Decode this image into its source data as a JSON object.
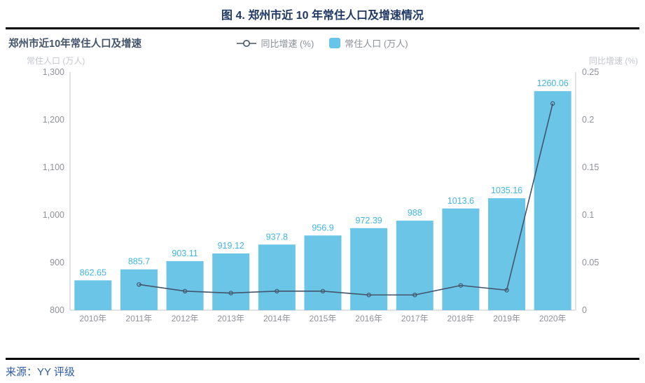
{
  "header": {
    "title": "图 4. 郑州市近 10 年常住人口及增速情况"
  },
  "chart": {
    "title": "郑州市近10年常住人口及增速",
    "left_axis_title": "常住人口 (万人)",
    "right_axis_title": "同比增速 (%)",
    "legend": [
      {
        "label": "同比增速 (%)",
        "type": "line-marker"
      },
      {
        "label": "常住人口 (万人)",
        "type": "square"
      }
    ]
  },
  "chart_data": {
    "type": "bar",
    "categories": [
      "2010年",
      "2011年",
      "2012年",
      "2013年",
      "2014年",
      "2015年",
      "2016年",
      "2017年",
      "2018年",
      "2019年",
      "2020年"
    ],
    "series": [
      {
        "name": "常住人口 (万人)",
        "type": "bar",
        "axis": "left",
        "values": [
          862.65,
          885.7,
          903.11,
          919.12,
          937.8,
          956.9,
          972.39,
          988,
          1013.6,
          1035.16,
          1260.06
        ],
        "labels": [
          "862.65",
          "885.7",
          "903.11",
          "919.12",
          "937.8",
          "956.9",
          "972.39",
          "988",
          "1013.6",
          "1035.16",
          "1260.06"
        ]
      },
      {
        "name": "同比增速 (%)",
        "type": "line",
        "axis": "right",
        "start_index": 1,
        "values": [
          0.027,
          0.02,
          0.018,
          0.02,
          0.02,
          0.016,
          0.016,
          0.026,
          0.021,
          0.217
        ]
      }
    ],
    "left_axis": {
      "min": 800,
      "max": 1300,
      "ticks": [
        {
          "value": 800,
          "label": "800"
        },
        {
          "value": 900,
          "label": "900"
        },
        {
          "value": 1000,
          "label": "1,000"
        },
        {
          "value": 1100,
          "label": "1,100"
        },
        {
          "value": 1200,
          "label": "1,200"
        },
        {
          "value": 1300,
          "label": "1,300"
        }
      ]
    },
    "right_axis": {
      "min": 0,
      "max": 0.25,
      "ticks": [
        {
          "value": 0,
          "label": "0"
        },
        {
          "value": 0.05,
          "label": "0.05"
        },
        {
          "value": 0.1,
          "label": "0.1"
        },
        {
          "value": 0.15,
          "label": "0.15"
        },
        {
          "value": 0.2,
          "label": "0.2"
        },
        {
          "value": 0.25,
          "label": "0.25"
        }
      ]
    },
    "colors": {
      "bar": "#6AC5E6",
      "bar_label": "#3FB6E3",
      "line": "#44546A",
      "axis": "#D9D9D9",
      "tick_text": "#8F9298",
      "accent_title": "#1F3864",
      "source_text": "#2D5BA8"
    },
    "legend_position": "top-center",
    "grid": false
  },
  "footer": {
    "source": "来源：YY 评级"
  }
}
